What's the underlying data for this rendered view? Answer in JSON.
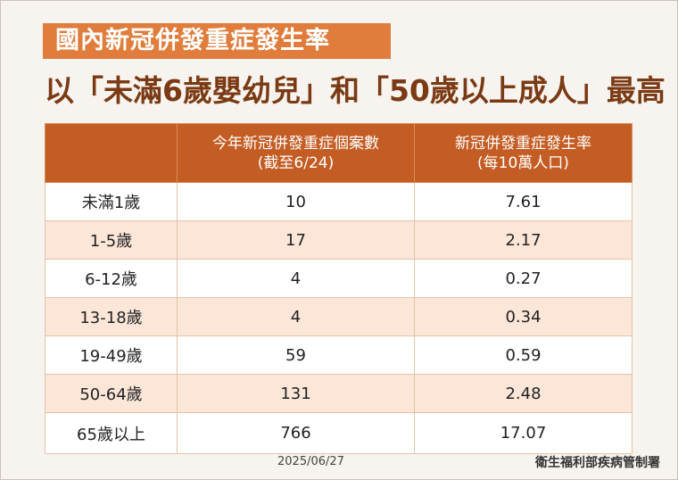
{
  "tag": "國內新冠併發重症發生率",
  "headline": "以「未滿6歲嬰幼兒」和「50歲以上成人」最高",
  "table": {
    "headers": [
      {
        "line1": "",
        "line2": ""
      },
      {
        "line1": "今年新冠併發重症個案數",
        "line2": "(截至6/24)"
      },
      {
        "line1": "新冠併發重症發生率",
        "line2": "(每10萬人口)"
      }
    ],
    "rows": [
      {
        "group": "未滿1歲",
        "cases": "10",
        "rate": "7.61"
      },
      {
        "group": "1-5歲",
        "cases": "17",
        "rate": "2.17"
      },
      {
        "group": "6-12歲",
        "cases": "4",
        "rate": "0.27"
      },
      {
        "group": "13-18歲",
        "cases": "4",
        "rate": "0.34"
      },
      {
        "group": "19-49歲",
        "cases": "59",
        "rate": "0.59"
      },
      {
        "group": "50-64歲",
        "cases": "131",
        "rate": "2.48"
      },
      {
        "group": "65歲以上",
        "cases": "766",
        "rate": "17.07"
      }
    ]
  },
  "footer": {
    "date": "2025/06/27",
    "source": "衛生福利部疾病管制署"
  }
}
